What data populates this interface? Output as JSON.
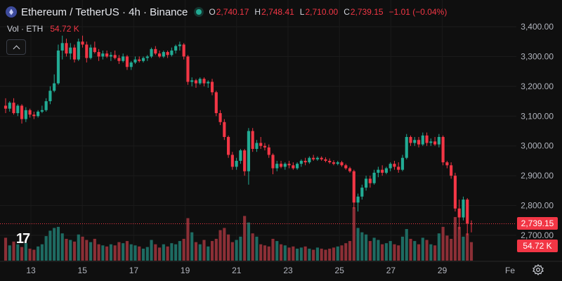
{
  "header": {
    "title": "Ethereum / TetherUS · 4h · Binance",
    "ohlc": [
      {
        "key": "O",
        "value": "2,740.17"
      },
      {
        "key": "H",
        "value": "2,748.41"
      },
      {
        "key": "L",
        "value": "2,710.00"
      },
      {
        "key": "C",
        "value": "2,739.15"
      }
    ],
    "change": "−1.01 (−0.04%)"
  },
  "volume_legend": {
    "label": "Vol · ETH",
    "value": "54.72 K"
  },
  "price_tag": "2,739.15",
  "volume_tag": "54.72 K",
  "logo_text": "17",
  "colors": {
    "up": "#22ab94",
    "down": "#f23645",
    "up_vol": "#1e6b62",
    "down_vol": "#8c2f36",
    "background": "#0f0f0f"
  },
  "icons": [
    "ethereum-icon",
    "status-dot-icon",
    "collapse-chevron-icon",
    "tradingview-logo-icon",
    "settings-gear-icon"
  ],
  "chart_data": {
    "type": "candlestick",
    "y_axis": {
      "ticks": [
        "3,400.00",
        "3,300.00",
        "3,200.00",
        "3,100.00",
        "3,000.00",
        "2,900.00",
        "2,800.00",
        "2,700.00"
      ],
      "range": [
        2700,
        3400
      ]
    },
    "x_axis": {
      "ticks": [
        "13",
        "15",
        "17",
        "19",
        "21",
        "23",
        "25",
        "27",
        "29",
        "Fe"
      ]
    },
    "series": [
      {
        "o": 3135,
        "h": 3160,
        "l": 3110,
        "c": 3125
      },
      {
        "o": 3125,
        "h": 3150,
        "l": 3115,
        "c": 3145
      },
      {
        "o": 3145,
        "h": 3160,
        "l": 3105,
        "c": 3110
      },
      {
        "o": 3110,
        "h": 3140,
        "l": 3100,
        "c": 3135
      },
      {
        "o": 3135,
        "h": 3140,
        "l": 3075,
        "c": 3090
      },
      {
        "o": 3090,
        "h": 3130,
        "l": 3080,
        "c": 3120
      },
      {
        "o": 3120,
        "h": 3125,
        "l": 3095,
        "c": 3105
      },
      {
        "o": 3105,
        "h": 3115,
        "l": 3090,
        "c": 3100
      },
      {
        "o": 3100,
        "h": 3120,
        "l": 3095,
        "c": 3115
      },
      {
        "o": 3115,
        "h": 3135,
        "l": 3110,
        "c": 3120
      },
      {
        "o": 3120,
        "h": 3160,
        "l": 3115,
        "c": 3150
      },
      {
        "o": 3150,
        "h": 3200,
        "l": 3140,
        "c": 3185
      },
      {
        "o": 3185,
        "h": 3240,
        "l": 3180,
        "c": 3210
      },
      {
        "o": 3210,
        "h": 3340,
        "l": 3205,
        "c": 3320
      },
      {
        "o": 3320,
        "h": 3370,
        "l": 3290,
        "c": 3345
      },
      {
        "o": 3345,
        "h": 3360,
        "l": 3300,
        "c": 3310
      },
      {
        "o": 3310,
        "h": 3345,
        "l": 3290,
        "c": 3330
      },
      {
        "o": 3330,
        "h": 3340,
        "l": 3280,
        "c": 3290
      },
      {
        "o": 3290,
        "h": 3360,
        "l": 3285,
        "c": 3350
      },
      {
        "o": 3350,
        "h": 3370,
        "l": 3330,
        "c": 3340
      },
      {
        "o": 3340,
        "h": 3350,
        "l": 3280,
        "c": 3295
      },
      {
        "o": 3295,
        "h": 3340,
        "l": 3290,
        "c": 3330
      },
      {
        "o": 3330,
        "h": 3350,
        "l": 3310,
        "c": 3315
      },
      {
        "o": 3315,
        "h": 3325,
        "l": 3285,
        "c": 3300
      },
      {
        "o": 3300,
        "h": 3320,
        "l": 3290,
        "c": 3310
      },
      {
        "o": 3310,
        "h": 3320,
        "l": 3295,
        "c": 3300
      },
      {
        "o": 3300,
        "h": 3315,
        "l": 3285,
        "c": 3305
      },
      {
        "o": 3305,
        "h": 3320,
        "l": 3290,
        "c": 3295
      },
      {
        "o": 3295,
        "h": 3305,
        "l": 3275,
        "c": 3285
      },
      {
        "o": 3285,
        "h": 3310,
        "l": 3280,
        "c": 3300
      },
      {
        "o": 3300,
        "h": 3305,
        "l": 3255,
        "c": 3265
      },
      {
        "o": 3265,
        "h": 3285,
        "l": 3255,
        "c": 3280
      },
      {
        "o": 3280,
        "h": 3300,
        "l": 3275,
        "c": 3290
      },
      {
        "o": 3290,
        "h": 3300,
        "l": 3280,
        "c": 3285
      },
      {
        "o": 3285,
        "h": 3300,
        "l": 3280,
        "c": 3295
      },
      {
        "o": 3295,
        "h": 3305,
        "l": 3285,
        "c": 3300
      },
      {
        "o": 3300,
        "h": 3330,
        "l": 3295,
        "c": 3325
      },
      {
        "o": 3325,
        "h": 3335,
        "l": 3305,
        "c": 3310
      },
      {
        "o": 3310,
        "h": 3320,
        "l": 3295,
        "c": 3300
      },
      {
        "o": 3300,
        "h": 3320,
        "l": 3295,
        "c": 3315
      },
      {
        "o": 3315,
        "h": 3320,
        "l": 3295,
        "c": 3305
      },
      {
        "o": 3305,
        "h": 3330,
        "l": 3300,
        "c": 3320
      },
      {
        "o": 3320,
        "h": 3340,
        "l": 3310,
        "c": 3335
      },
      {
        "o": 3335,
        "h": 3350,
        "l": 3320,
        "c": 3340
      },
      {
        "o": 3340,
        "h": 3345,
        "l": 3290,
        "c": 3300
      },
      {
        "o": 3300,
        "h": 3305,
        "l": 3205,
        "c": 3215
      },
      {
        "o": 3215,
        "h": 3230,
        "l": 3200,
        "c": 3220
      },
      {
        "o": 3220,
        "h": 3225,
        "l": 3195,
        "c": 3210
      },
      {
        "o": 3210,
        "h": 3230,
        "l": 3205,
        "c": 3225
      },
      {
        "o": 3225,
        "h": 3230,
        "l": 3200,
        "c": 3210
      },
      {
        "o": 3210,
        "h": 3220,
        "l": 3195,
        "c": 3215
      },
      {
        "o": 3215,
        "h": 3225,
        "l": 3170,
        "c": 3180
      },
      {
        "o": 3180,
        "h": 3185,
        "l": 3100,
        "c": 3110
      },
      {
        "o": 3110,
        "h": 3120,
        "l": 3070,
        "c": 3080
      },
      {
        "o": 3080,
        "h": 3090,
        "l": 3020,
        "c": 3030
      },
      {
        "o": 3030,
        "h": 3035,
        "l": 2960,
        "c": 2970
      },
      {
        "o": 2970,
        "h": 2980,
        "l": 2920,
        "c": 2930
      },
      {
        "o": 2930,
        "h": 2960,
        "l": 2920,
        "c": 2950
      },
      {
        "o": 2950,
        "h": 2990,
        "l": 2940,
        "c": 2985
      },
      {
        "o": 2985,
        "h": 2990,
        "l": 2900,
        "c": 2915
      },
      {
        "o": 2915,
        "h": 3060,
        "l": 2870,
        "c": 3050
      },
      {
        "o": 3050,
        "h": 3060,
        "l": 2980,
        "c": 2990
      },
      {
        "o": 2990,
        "h": 3020,
        "l": 2980,
        "c": 3010
      },
      {
        "o": 3010,
        "h": 3030,
        "l": 2990,
        "c": 3000
      },
      {
        "o": 3000,
        "h": 3010,
        "l": 2985,
        "c": 2995
      },
      {
        "o": 2995,
        "h": 3005,
        "l": 2960,
        "c": 2970
      },
      {
        "o": 2970,
        "h": 2975,
        "l": 2905,
        "c": 2925
      },
      {
        "o": 2925,
        "h": 2950,
        "l": 2915,
        "c": 2940
      },
      {
        "o": 2940,
        "h": 2950,
        "l": 2925,
        "c": 2930
      },
      {
        "o": 2930,
        "h": 2945,
        "l": 2920,
        "c": 2940
      },
      {
        "o": 2940,
        "h": 2950,
        "l": 2925,
        "c": 2935
      },
      {
        "o": 2935,
        "h": 2945,
        "l": 2920,
        "c": 2925
      },
      {
        "o": 2925,
        "h": 2945,
        "l": 2920,
        "c": 2940
      },
      {
        "o": 2940,
        "h": 2955,
        "l": 2930,
        "c": 2950
      },
      {
        "o": 2950,
        "h": 2960,
        "l": 2935,
        "c": 2945
      },
      {
        "o": 2945,
        "h": 2965,
        "l": 2940,
        "c": 2960
      },
      {
        "o": 2960,
        "h": 2970,
        "l": 2950,
        "c": 2955
      },
      {
        "o": 2955,
        "h": 2965,
        "l": 2950,
        "c": 2960
      },
      {
        "o": 2960,
        "h": 2965,
        "l": 2950,
        "c": 2955
      },
      {
        "o": 2955,
        "h": 2962,
        "l": 2945,
        "c": 2950
      },
      {
        "o": 2950,
        "h": 2958,
        "l": 2940,
        "c": 2945
      },
      {
        "o": 2945,
        "h": 2952,
        "l": 2935,
        "c": 2940
      },
      {
        "o": 2940,
        "h": 2950,
        "l": 2935,
        "c": 2945
      },
      {
        "o": 2945,
        "h": 2950,
        "l": 2930,
        "c": 2935
      },
      {
        "o": 2935,
        "h": 2940,
        "l": 2920,
        "c": 2925
      },
      {
        "o": 2925,
        "h": 2930,
        "l": 2910,
        "c": 2915
      },
      {
        "o": 2915,
        "h": 2920,
        "l": 2790,
        "c": 2810
      },
      {
        "o": 2810,
        "h": 2840,
        "l": 2780,
        "c": 2830
      },
      {
        "o": 2830,
        "h": 2870,
        "l": 2820,
        "c": 2860
      },
      {
        "o": 2860,
        "h": 2900,
        "l": 2850,
        "c": 2890
      },
      {
        "o": 2890,
        "h": 2900,
        "l": 2860,
        "c": 2875
      },
      {
        "o": 2875,
        "h": 2920,
        "l": 2870,
        "c": 2910
      },
      {
        "o": 2910,
        "h": 2930,
        "l": 2895,
        "c": 2920
      },
      {
        "o": 2920,
        "h": 2935,
        "l": 2900,
        "c": 2910
      },
      {
        "o": 2910,
        "h": 2930,
        "l": 2905,
        "c": 2925
      },
      {
        "o": 2925,
        "h": 2945,
        "l": 2915,
        "c": 2940
      },
      {
        "o": 2940,
        "h": 2950,
        "l": 2920,
        "c": 2930
      },
      {
        "o": 2930,
        "h": 2945,
        "l": 2910,
        "c": 2920
      },
      {
        "o": 2920,
        "h": 2970,
        "l": 2915,
        "c": 2960
      },
      {
        "o": 2960,
        "h": 3040,
        "l": 2955,
        "c": 3030
      },
      {
        "o": 3030,
        "h": 3035,
        "l": 3000,
        "c": 3010
      },
      {
        "o": 3010,
        "h": 3030,
        "l": 3000,
        "c": 3020
      },
      {
        "o": 3020,
        "h": 3030,
        "l": 2995,
        "c": 3005
      },
      {
        "o": 3005,
        "h": 3045,
        "l": 3000,
        "c": 3035
      },
      {
        "o": 3035,
        "h": 3045,
        "l": 3000,
        "c": 3010
      },
      {
        "o": 3010,
        "h": 3025,
        "l": 3000,
        "c": 3015
      },
      {
        "o": 3015,
        "h": 3030,
        "l": 3000,
        "c": 3005
      },
      {
        "o": 3005,
        "h": 3040,
        "l": 2995,
        "c": 3030
      },
      {
        "o": 3030,
        "h": 3035,
        "l": 2935,
        "c": 2945
      },
      {
        "o": 2945,
        "h": 2950,
        "l": 2925,
        "c": 2935
      },
      {
        "o": 2935,
        "h": 2945,
        "l": 2890,
        "c": 2900
      },
      {
        "o": 2900,
        "h": 2910,
        "l": 2780,
        "c": 2790
      },
      {
        "o": 2790,
        "h": 2820,
        "l": 2720,
        "c": 2760
      },
      {
        "o": 2760,
        "h": 2830,
        "l": 2750,
        "c": 2820
      },
      {
        "o": 2820,
        "h": 2825,
        "l": 2700,
        "c": 2740
      },
      {
        "o": 2740,
        "h": 2750,
        "l": 2710,
        "c": 2739
      }
    ],
    "volume": [
      42,
      28,
      35,
      30,
      25,
      32,
      22,
      20,
      26,
      30,
      45,
      55,
      60,
      62,
      50,
      40,
      38,
      35,
      48,
      44,
      38,
      34,
      40,
      30,
      28,
      26,
      30,
      28,
      34,
      32,
      36,
      30,
      28,
      26,
      22,
      25,
      38,
      30,
      24,
      30,
      26,
      32,
      30,
      36,
      40,
      78,
      52,
      34,
      30,
      38,
      26,
      36,
      40,
      56,
      60,
      48,
      34,
      38,
      44,
      82,
      70,
      50,
      44,
      30,
      28,
      26,
      40,
      36,
      30,
      28,
      24,
      26,
      22,
      24,
      26,
      22,
      20,
      24,
      22,
      20,
      22,
      24,
      26,
      28,
      32,
      36,
      98,
      60,
      52,
      48,
      36,
      42,
      38,
      30,
      32,
      36,
      30,
      28,
      44,
      58,
      40,
      36,
      30,
      42,
      38,
      30,
      28,
      50,
      62,
      46,
      40,
      80,
      62,
      44,
      50,
      34
    ]
  }
}
